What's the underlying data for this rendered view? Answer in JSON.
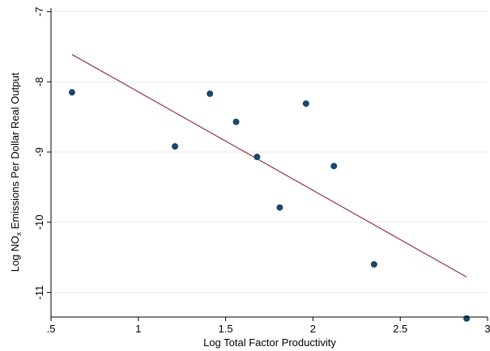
{
  "chart_data": {
    "type": "scatter",
    "xlabel": "Log Total Factor Productivity",
    "ylabel": "Log NO",
    "ylabel_sub": "x",
    "ylabel_rest": " Emissions Per Dollar Real Output",
    "xlim": [
      0.5,
      3.0
    ],
    "ylim": [
      -11.35,
      -6.95
    ],
    "xticks": [
      0.5,
      1,
      1.5,
      2,
      2.5,
      3
    ],
    "xtick_labels": [
      ".5",
      "1",
      "1.5",
      "2",
      "2.5",
      "3"
    ],
    "yticks": [
      -11,
      -10,
      -9,
      -8,
      -7
    ],
    "ytick_labels": [
      "-11",
      "-10",
      "-9",
      "-8",
      "-7"
    ],
    "grid": true,
    "points": [
      {
        "x": 0.62,
        "y": -8.15
      },
      {
        "x": 1.21,
        "y": -8.92
      },
      {
        "x": 1.41,
        "y": -8.17
      },
      {
        "x": 1.56,
        "y": -8.57
      },
      {
        "x": 1.68,
        "y": -9.07
      },
      {
        "x": 1.81,
        "y": -9.79
      },
      {
        "x": 1.96,
        "y": -8.31
      },
      {
        "x": 2.12,
        "y": -9.2
      },
      {
        "x": 2.35,
        "y": -10.6
      },
      {
        "x": 2.88,
        "y": -11.37
      }
    ],
    "fit_line": {
      "x": [
        0.62,
        2.88
      ],
      "y": [
        -7.61,
        -10.78
      ]
    },
    "colors": {
      "points": "#1a476f",
      "fit_line": "#90353b",
      "grid": "#e9e9e9",
      "axis": "#000000"
    }
  }
}
